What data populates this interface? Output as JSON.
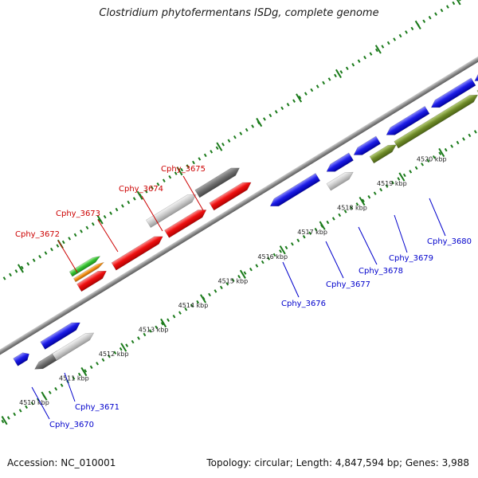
{
  "title": "Clostridium phytofermentans ISDg, complete genome",
  "footer": {
    "accession": "Accession: NC_010001",
    "summary": "Topology: circular; Length: 4,847,594 bp; Genes: 3,988"
  },
  "colors": {
    "forward_label": "#cc0000",
    "reverse_label": "#0000cc",
    "tick": "#1a7a1a",
    "backbone": "#8c8c8c"
  },
  "scale_labels": [
    "4510 kbp",
    "4511 kbp",
    "4512 kbp",
    "4513 kbp",
    "4514 kbp",
    "4515 kbp",
    "4516 kbp",
    "4517 kbp",
    "4518 kbp",
    "4519 kbp",
    "4520 kbp"
  ],
  "genes": [
    {
      "name": "Cphy_3670",
      "color": "#1a1acc",
      "strand": "reverse"
    },
    {
      "name": "Cphy_3671",
      "color": "#1a1acc",
      "strand": "reverse"
    },
    {
      "name": "Cphy_3672",
      "color": "#cc0000",
      "strand": "forward"
    },
    {
      "name": "Cphy_3673",
      "color": "#cc0000",
      "strand": "forward"
    },
    {
      "name": "Cphy_3674",
      "color": "#cc0000",
      "strand": "forward"
    },
    {
      "name": "Cphy_3675",
      "color": "#cc0000",
      "strand": "forward"
    },
    {
      "name": "Cphy_3676",
      "color": "#1a1acc",
      "strand": "reverse"
    },
    {
      "name": "Cphy_3677",
      "color": "#1a1acc",
      "strand": "reverse"
    },
    {
      "name": "Cphy_3678",
      "color": "#1a1acc",
      "strand": "reverse"
    },
    {
      "name": "Cphy_3679",
      "color": "#1a1acc",
      "strand": "reverse"
    },
    {
      "name": "Cphy_3680",
      "color": "#1a1acc",
      "strand": "reverse"
    }
  ]
}
